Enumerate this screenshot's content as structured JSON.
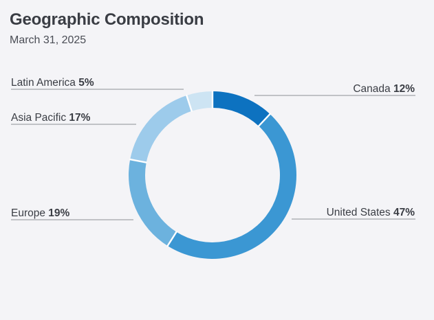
{
  "header": {
    "title": "Geographic Composition",
    "date": "March 31, 2025"
  },
  "chart_data": {
    "type": "pie",
    "title": "Geographic Composition",
    "subtitle": "March 31, 2025",
    "donut": true,
    "labels_suffix": "%",
    "slices": [
      {
        "label": "Canada",
        "value": 12,
        "color": "#0d72c0"
      },
      {
        "label": "United States",
        "value": 47,
        "color": "#3b97d3"
      },
      {
        "label": "Europe",
        "value": 19,
        "color": "#6cb2de"
      },
      {
        "label": "Asia Pacific",
        "value": 17,
        "color": "#9dcbeb"
      },
      {
        "label": "Latin America",
        "value": 5,
        "color": "#cde4f3"
      }
    ]
  }
}
